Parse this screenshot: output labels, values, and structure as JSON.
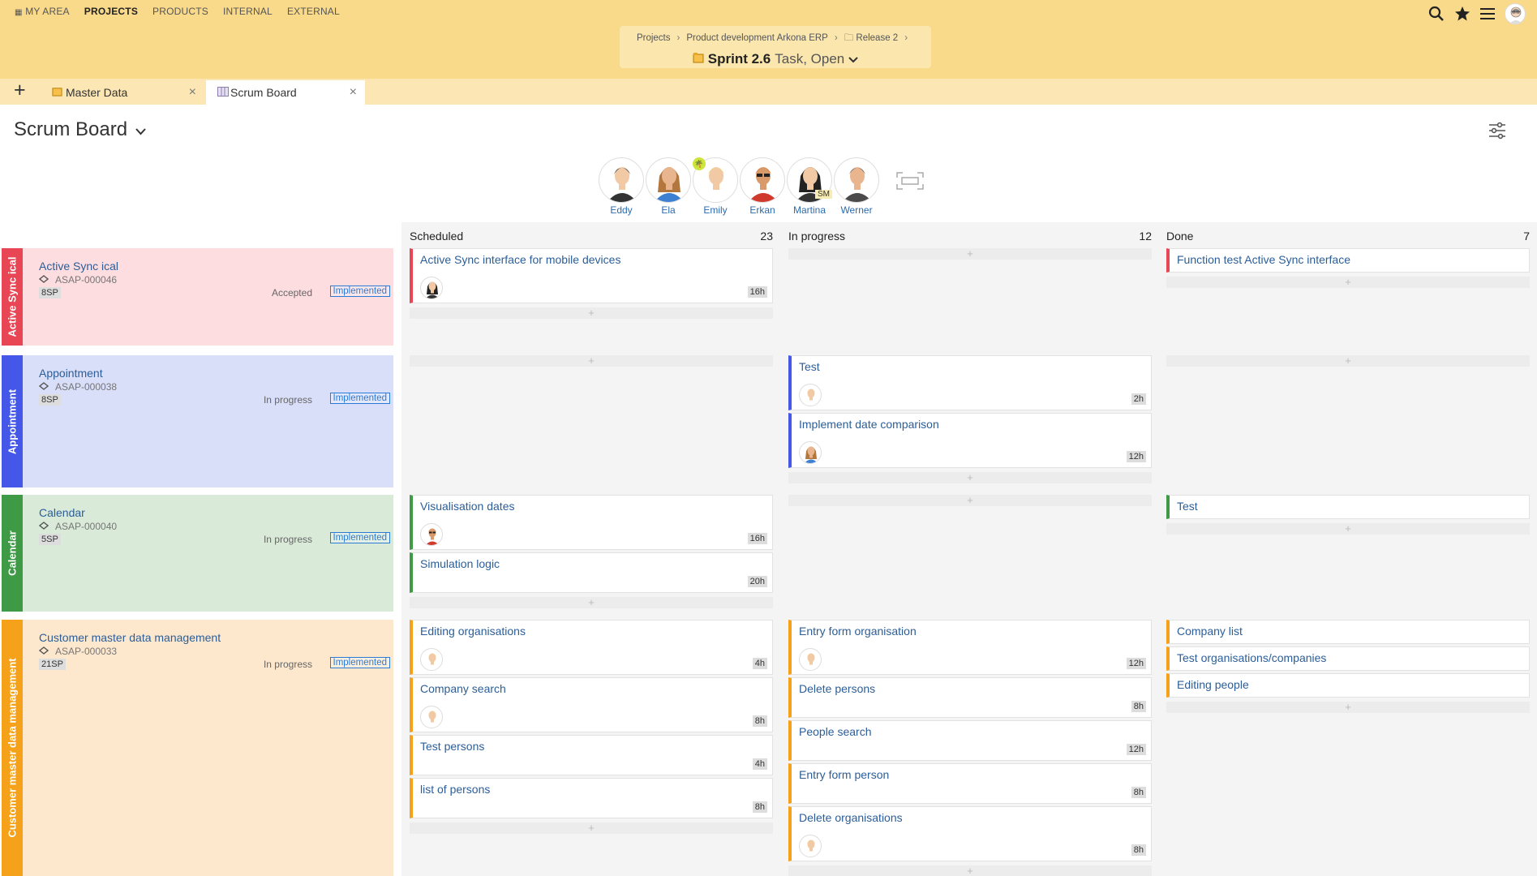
{
  "topnav": [
    "MY AREA",
    "PROJECTS",
    "PRODUCTS",
    "INTERNAL",
    "EXTERNAL"
  ],
  "topnav_active": "PROJECTS",
  "breadcrumb": [
    "Projects",
    "Product development Arkona ERP",
    "Release 2"
  ],
  "sprint": {
    "name": "Sprint 2.6",
    "status": "Task, Open"
  },
  "tabs": [
    {
      "label": "Master Data",
      "icon": "folder-icon"
    },
    {
      "label": "Scrum Board",
      "icon": "board-icon"
    }
  ],
  "page": {
    "title": "Scrum Board"
  },
  "team": [
    {
      "name": "Eddy",
      "tag": "",
      "badge": false
    },
    {
      "name": "Ela",
      "tag": "",
      "badge": false
    },
    {
      "name": "Emily",
      "tag": "",
      "badge": true
    },
    {
      "name": "Erkan",
      "tag": "",
      "badge": false
    },
    {
      "name": "Martina",
      "tag": "SM",
      "badge": false
    },
    {
      "name": "Werner",
      "tag": "",
      "badge": false
    }
  ],
  "columns": [
    {
      "name": "Scheduled",
      "count": "23"
    },
    {
      "name": "In progress",
      "count": "12"
    },
    {
      "name": "Done",
      "count": "7"
    }
  ],
  "stories": [
    {
      "bar": "Active Sync ical",
      "title": "Active Sync ical",
      "id": "ASAP-000046",
      "sp": "8SP",
      "status": "Accepted",
      "impl": "Implemented",
      "color": "#e84655",
      "bg": "#fddde0"
    },
    {
      "bar": "Appointment",
      "title": "Appointment",
      "id": "ASAP-000038",
      "sp": "8SP",
      "status": "In progress",
      "impl": "Implemented",
      "color": "#4457e8",
      "bg": "#d9def9"
    },
    {
      "bar": "Calendar",
      "title": "Calendar",
      "id": "ASAP-000040",
      "sp": "5SP",
      "status": "In progress",
      "impl": "Implemented",
      "color": "#3f9a46",
      "bg": "#d9ead9"
    },
    {
      "bar": "Customer master data management",
      "title": "Customer master data management",
      "id": "ASAP-000033",
      "sp": "21SP",
      "status": "In progress",
      "impl": "Implemented",
      "color": "#f5a21a",
      "bg": "#fde8ce"
    }
  ],
  "cards": {
    "s0_scheduled": [
      {
        "title": "Active Sync interface for mobile devices",
        "hours": "16h",
        "avatar": "martina"
      }
    ],
    "s0_done": [
      {
        "title": "Function test Active Sync interface",
        "hours": ""
      }
    ],
    "s1_progress": [
      {
        "title": "Test",
        "hours": "2h",
        "avatar": "emily"
      },
      {
        "title": "Implement date comparison",
        "hours": "12h",
        "avatar": "ela"
      }
    ],
    "s2_scheduled": [
      {
        "title": "Visualisation dates",
        "hours": "16h",
        "avatar": "erkan"
      },
      {
        "title": "Simulation logic",
        "hours": "20h"
      }
    ],
    "s2_done": [
      {
        "title": "Test",
        "hours": ""
      }
    ],
    "s3_scheduled": [
      {
        "title": "Editing organisations",
        "hours": "4h",
        "avatar": "emily"
      },
      {
        "title": "Company search",
        "hours": "8h",
        "avatar": "emily"
      },
      {
        "title": "Test persons",
        "hours": "4h"
      },
      {
        "title": "list of persons",
        "hours": "8h"
      }
    ],
    "s3_progress": [
      {
        "title": "Entry form organisation",
        "hours": "12h",
        "avatar": "emily"
      },
      {
        "title": "Delete persons",
        "hours": "8h"
      },
      {
        "title": "People search",
        "hours": "12h"
      },
      {
        "title": "Entry form person",
        "hours": "8h"
      },
      {
        "title": "Delete organisations",
        "hours": "8h",
        "avatar": "emily"
      }
    ],
    "s3_done": [
      {
        "title": "Company list",
        "hours": ""
      },
      {
        "title": "Test organisations/companies",
        "hours": ""
      },
      {
        "title": "Editing people",
        "hours": ""
      }
    ]
  },
  "add_symbol": "+"
}
